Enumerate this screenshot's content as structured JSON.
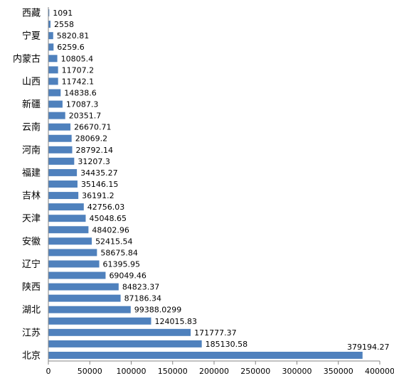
{
  "chart_data": {
    "type": "bar",
    "orientation": "horizontal",
    "title": "",
    "xlabel": "",
    "ylabel": "",
    "bar_color": "#4F81BD",
    "grid": false,
    "legend": "none",
    "xlim": [
      0,
      400000
    ],
    "x_ticks": [
      0,
      50000,
      100000,
      150000,
      200000,
      250000,
      300000,
      350000,
      400000
    ],
    "x_tick_labels": [
      "0",
      "50000",
      "100000",
      "150000",
      "200000",
      "250000",
      "300000",
      "350000",
      "400000"
    ],
    "categories": [
      "西藏",
      "",
      "宁夏",
      "",
      "内蒙古",
      "",
      "山西",
      "",
      "新疆",
      "",
      "云南",
      "",
      "河南",
      "",
      "福建",
      "",
      "吉林",
      "",
      "天津",
      "",
      "安徽",
      "",
      "辽宁",
      "",
      "陕西",
      "",
      "湖北",
      "",
      "江苏",
      "",
      "北京"
    ],
    "values": [
      1091,
      2558,
      5820.81,
      6259.6,
      10805.4,
      11707.2,
      11742.1,
      14838.6,
      17087.3,
      20351.7,
      26670.71,
      28069.2,
      28792.14,
      31207.3,
      34435.27,
      35146.15,
      36191.2,
      42756.03,
      45048.65,
      48402.96,
      52415.54,
      58675.84,
      61395.95,
      69049.46,
      84823.37,
      87186.34,
      99388.0299,
      124015.83,
      171777.37,
      185130.58,
      379194.27
    ],
    "value_labels": [
      "1091",
      "2558",
      "5820.81",
      "6259.6",
      "10805.4",
      "11707.2",
      "11742.1",
      "14838.6",
      "17087.3",
      "20351.7",
      "26670.71",
      "28069.2",
      "28792.14",
      "31207.3",
      "34435.27",
      "35146.15",
      "36191.2",
      "42756.03",
      "45048.65",
      "48402.96",
      "52415.54",
      "58675.84",
      "61395.95",
      "69049.46",
      "84823.37",
      "87186.34",
      "99388.0299",
      "124015.83",
      "171777.37",
      "185130.58",
      "379194.27"
    ]
  }
}
